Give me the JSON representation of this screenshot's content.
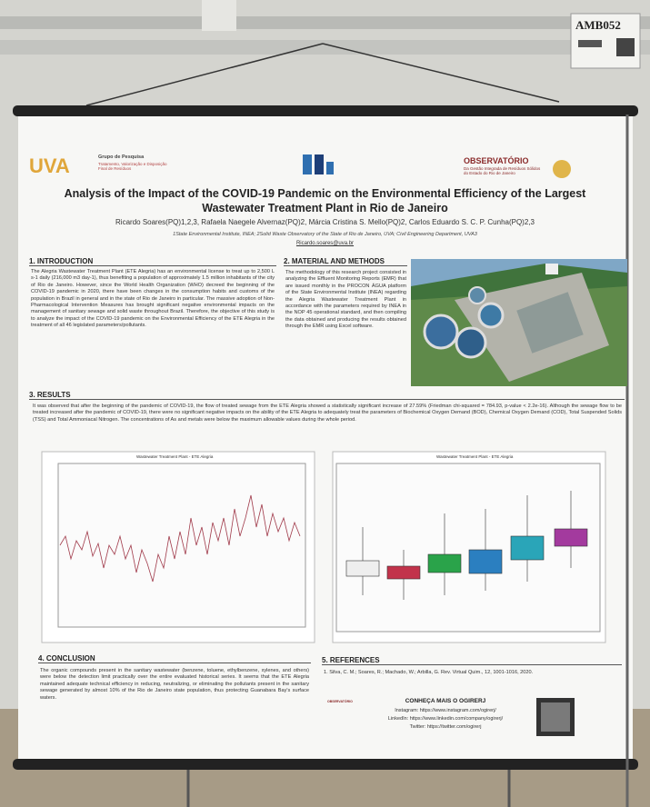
{
  "tag": "AMB052",
  "header": {
    "logo_left": "UVA",
    "group": "Grupo de Pesquisa",
    "group_sub": "Tratamento, Valorização e Disposição Final de Resíduos",
    "logo_right": "OBSERVATÓRIO",
    "logo_right_sub": "Da Gestão Integrada de Resíduos Sólidos do Estado do Rio de Janeiro"
  },
  "title": "Analysis of the Impact of the COVID-19 Pandemic on the Environmental Efficiency of the Largest Wastewater Treatment Plant in Rio de Janeiro",
  "authors": "Ricardo Soares(PQ)1,2,3, Rafaela Naegele Alvernaz(PQ)2, Márcia Cristina S. Mello(PQ)2, Carlos Eduardo S. C. P. Cunha(PQ)2,3",
  "affiliations": "1State Environmental Institute, INEA; 2Solid Waste Observatory of the State of Rio de Janeiro, UVA; Civil Engineering Department, UVA3",
  "email": "Ricardo.soares@uva.br",
  "introduction": {
    "heading": "1. INTRODUCTION",
    "text": "The Alegria Wastewater Treatment Plant (ETE Alegria) has an environmental license to treat up to 2,500 L s-1 daily (216,000 m3 day-1), thus benefiting a population of approximately 1.5 million inhabitants of the city of Rio de Janeiro. However, since the World Health Organization (WHO) decreed the beginning of the COVID-19 pandemic in 2020, there have been changes in the consumption habits and customs of the population in Brazil in general and in the state of Rio de Janeiro in particular. The massive adoption of Non-Pharmacological Intervention Measures has brought significant negative environmental impacts on the management of sanitary sewage and solid waste throughout Brazil. Therefore, the objective of this study is to analyze the impact of the COVID-19 pandemic on the Environmental Efficiency of the ETE Alegria in the treatment of all 46 legislated parameters/pollutants."
  },
  "methods": {
    "heading": "2. MATERIAL AND METHODS",
    "text": "The methodology of this research project consisted in analyzing the Effluent Monitoring Reports (EMR) that are issued monthly in the PROCON ÁGUA platform of the State Environmental Institute (INEA) regarding the Alegria Wastewater Treatment Plant in accordance with the parameters required by INEA in the NOP 45 operational standard, and then compiling the data obtained and producing the results obtained through the EMR using Excel software."
  },
  "results": {
    "heading": "3. RESULTS",
    "text": "It was observed that after the beginning of the pandemic of COVID-19, the flow of treated sewage from the ETE Alegria showed a statistically significant increase of 27.59% (Friedman chi-squared = 784.93, p-value < 2.2e-16). Although the sewage flow to be treated increased after the pandemic of COVID-19, there were no significant negative impacts on the ability of the ETE Alegria to adequately treat the parameters of Biochemical Oxygen Demand (BOD), Chemical Oxygen Demand (COD), Total Suspended Solids (TSS) and Total Ammoniacal Nitrogen. The concentrations of As and metals were below the maximum allowable values during the whole period.",
    "figure_left_title": "Wastewater Treatment Plant - ETE Alegria",
    "figure_right_title": "Wastewater Treatment Plant - ETE Alegria"
  },
  "conclusion": {
    "heading": "4. CONCLUSION",
    "text": "The organic compounds present in the sanitary wastewater (benzene, toluene, ethylbenzene, xylenes, and others) were below the detection limit practically over the entire evaluated historical series. It seems that the ETE Alegria maintained adequate technical efficiency in reducing, neutralizing, or eliminating the pollutants present in the sanitary sewage generated by almost 10% of the Rio de Janeiro state population, thus protecting Guanabara Bay's surface waters."
  },
  "references": {
    "heading": "5. REFERENCES",
    "text": "1. Silva, C. M.; Soares, R.; Machado, W.; Arbilla, G. Rev. Virtual Quim., 12, 1001-1016, 2020."
  },
  "contact": {
    "heading": "CONHEÇA MAIS O OGIRERJ",
    "instagram": "Instagram: https://www.instagram.com/ogirerj/",
    "linkedin": "LinkedIn: https://www.linkedin.com/company/ogirerj/",
    "twitter": "Twitter: https://twitter.com/ogirerj",
    "logo": "OBSERVATÓRIO"
  }
}
